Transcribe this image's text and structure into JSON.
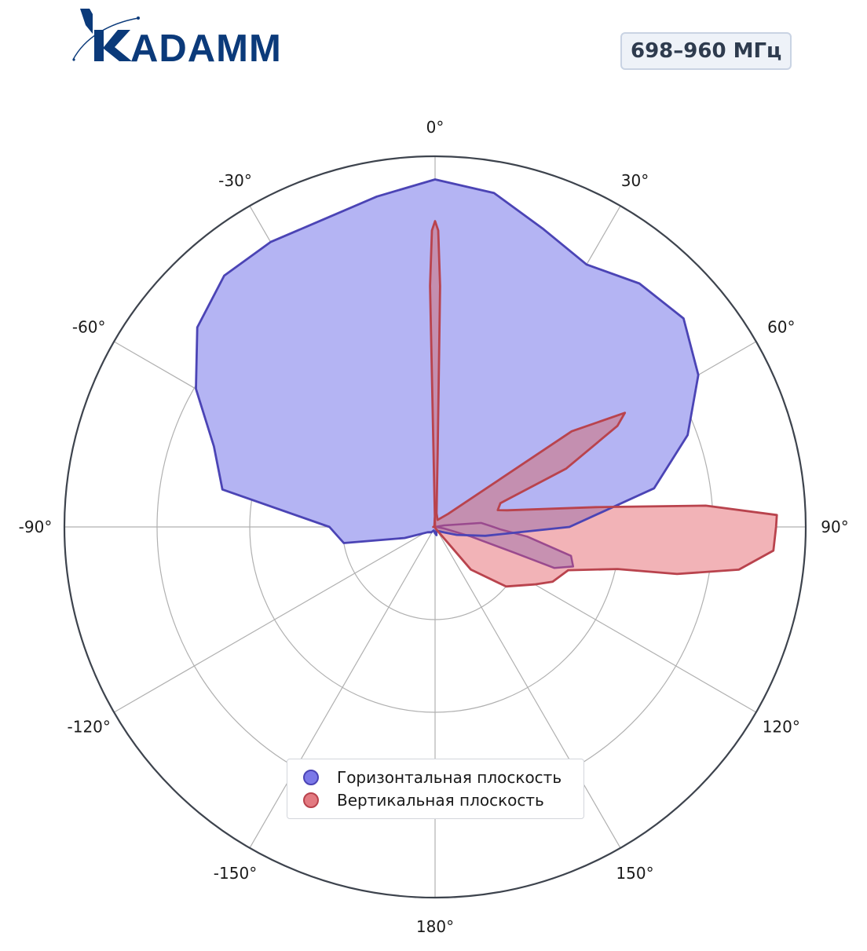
{
  "brand": {
    "logo_text": "KADAMM",
    "logo_color": "#0b3a7a"
  },
  "badge": {
    "label": "698–960 МГц"
  },
  "chart_data": {
    "type": "polar",
    "angle_unit": "degrees",
    "angle_zero": "top",
    "angle_direction": "clockwise",
    "angle_ticks": [
      0,
      30,
      60,
      90,
      120,
      150,
      180,
      -150,
      -120,
      -90,
      -60,
      -30
    ],
    "angle_tick_labels": [
      "0°",
      "30°",
      "60°",
      "90°",
      "120°",
      "150°",
      "180°",
      "-150°",
      "-120°",
      "-90°",
      "-60°",
      "-30°"
    ],
    "radial_range": [
      0,
      4
    ],
    "radial_gridlines": [
      1,
      2,
      3,
      4
    ],
    "radial_tick_labels_visible": false,
    "grid": true,
    "legend_position": "bottom-center",
    "series": [
      {
        "name": "Горизонтальная плоскость",
        "line_color": "#4b44b5",
        "fill_color": "#b4b4f3",
        "swatch_color": "#7b78e8",
        "points": [
          [
            0,
            3.75
          ],
          [
            10,
            3.66
          ],
          [
            20,
            3.42
          ],
          [
            30,
            3.27
          ],
          [
            40,
            3.43
          ],
          [
            50,
            3.5
          ],
          [
            60,
            3.28
          ],
          [
            70,
            2.9
          ],
          [
            80,
            2.4
          ],
          [
            90,
            1.45
          ],
          [
            100,
            0.55
          ],
          [
            110,
            0.25
          ],
          [
            120,
            0.12
          ],
          [
            140,
            0.06
          ],
          [
            160,
            0.04
          ],
          [
            170,
            0.09
          ],
          [
            180,
            0.07
          ],
          [
            190,
            0.05
          ],
          [
            200,
            0.04
          ],
          [
            215,
            0.07
          ],
          [
            225,
            0.08
          ],
          [
            235,
            0.1
          ],
          [
            250,
            0.35
          ],
          [
            260,
            1.0
          ],
          [
            270,
            1.14
          ],
          [
            280,
            2.33
          ],
          [
            290,
            2.54
          ],
          [
            300,
            2.98
          ],
          [
            310,
            3.35
          ],
          [
            320,
            3.54
          ],
          [
            330,
            3.55
          ],
          [
            340,
            3.53
          ],
          [
            350,
            3.62
          ],
          [
            360,
            3.75
          ]
        ]
      },
      {
        "name": "Вертикальная плоскость",
        "line_color": "#b9434d",
        "fill_color": "#f2b3b7",
        "swatch_color": "#e37a81",
        "points": [
          [
            0,
            0
          ],
          [
            -1.2,
            2.6
          ],
          [
            -0.6,
            3.2
          ],
          [
            0,
            3.3
          ],
          [
            0.6,
            3.2
          ],
          [
            1.2,
            2.6
          ],
          [
            2.0,
            0.8
          ],
          [
            6,
            0.15
          ],
          [
            20,
            0.08
          ],
          [
            45,
            0.2
          ],
          [
            55,
            1.8
          ],
          [
            59,
            2.39
          ],
          [
            61,
            2.25
          ],
          [
            66,
            1.55
          ],
          [
            70,
            0.75
          ],
          [
            75,
            0.7
          ],
          [
            77,
            0.8
          ],
          [
            83,
            1.75
          ],
          [
            85.5,
            2.93
          ],
          [
            88,
            3.69
          ],
          [
            90,
            3.68
          ],
          [
            94,
            3.66
          ],
          [
            98,
            3.31
          ],
          [
            101,
            2.66
          ],
          [
            103,
            2.02
          ],
          [
            108,
            1.51
          ],
          [
            115,
            1.4
          ],
          [
            120,
            1.24
          ],
          [
            130,
            1.0
          ],
          [
            140,
            0.6
          ],
          [
            160,
            0.02
          ],
          [
            250,
            0.005
          ],
          [
            270,
            0.02
          ],
          [
            300,
            0.01
          ],
          [
            340,
            0.02
          ],
          [
            358,
            0.1
          ],
          [
            360,
            0
          ]
        ]
      },
      {
        "name": "",
        "line_color": "#9a4a8e",
        "fill_color": "#c48fb0",
        "swatch_color": "#c48fb0",
        "points": [
          [
            0,
            0
          ],
          [
            80,
            0.1
          ],
          [
            85,
            0.5
          ],
          [
            89,
            0.6
          ],
          [
            92,
            0.7
          ],
          [
            96,
            1.0
          ],
          [
            102,
            1.5
          ],
          [
            106,
            1.55
          ],
          [
            109,
            1.36
          ],
          [
            108,
            0.9
          ],
          [
            105,
            0.4
          ],
          [
            100,
            0.1
          ],
          [
            92,
            0.02
          ],
          [
            0,
            0
          ]
        ]
      }
    ]
  },
  "legend": {
    "items": [
      {
        "label": "Горизонтальная плоскость",
        "color": "#7b78e8",
        "border": "#4b44b5"
      },
      {
        "label": "Вертикальная плоскость",
        "color": "#e37a81",
        "border": "#b9434d"
      }
    ]
  }
}
